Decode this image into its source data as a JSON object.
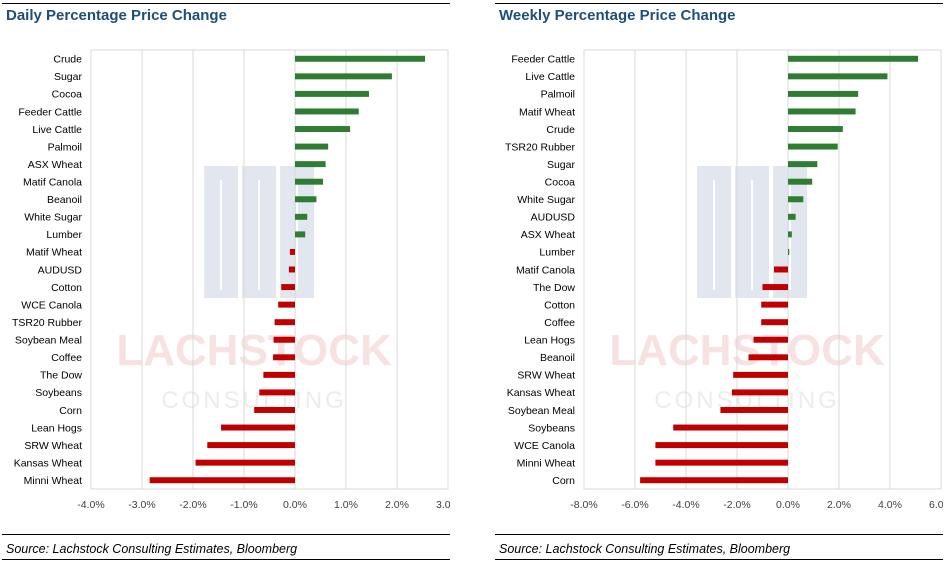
{
  "charts": [
    {
      "title": "Daily Percentage Price Change",
      "source": "Source: Lachstock Consulting Estimates, Bloomberg"
    },
    {
      "title": "Weekly Percentage Price Change",
      "source": "Source: Lachstock Consulting Estimates, Bloomberg"
    }
  ],
  "watermark": {
    "line1": "LACHSTOCK",
    "line2": "CONSULTING"
  },
  "colors": {
    "positive": "#2e7d32",
    "negative": "#c00000",
    "title": "#1f4e79",
    "grid": "#d9d9d9"
  },
  "chart_data": [
    {
      "type": "bar",
      "orientation": "horizontal",
      "title": "Daily Percentage Price Change",
      "categories": [
        "Crude",
        "Sugar",
        "Cocoa",
        "Feeder Cattle",
        "Live Cattle",
        "Palmoil",
        "ASX Wheat",
        "Matif Canola",
        "Beanoil",
        "White Sugar",
        "Lumber",
        "Matif Wheat",
        "AUDUSD",
        "Cotton",
        "WCE Canola",
        "TSR20 Rubber",
        "Soybean Meal",
        "Coffee",
        "The Dow",
        "Soybeans",
        "Corn",
        "Lean Hogs",
        "SRW Wheat",
        "Kansas Wheat",
        "Minni Wheat"
      ],
      "values": [
        2.55,
        1.9,
        1.45,
        1.25,
        1.08,
        0.65,
        0.6,
        0.55,
        0.42,
        0.24,
        0.2,
        -0.1,
        -0.12,
        -0.27,
        -0.33,
        -0.4,
        -0.42,
        -0.43,
        -0.62,
        -0.7,
        -0.8,
        -1.45,
        -1.72,
        -1.95,
        -2.85
      ],
      "xlim": [
        -4,
        3
      ],
      "ticks": [
        "-4.0%",
        "-3.0%",
        "-2.0%",
        "-1.0%",
        "0.0%",
        "1.0%",
        "2.0%",
        "3.0%"
      ],
      "grid": true
    },
    {
      "type": "bar",
      "orientation": "horizontal",
      "title": "Weekly Percentage Price Change",
      "categories": [
        "Feeder Cattle",
        "Live Cattle",
        "Palmoil",
        "Matif Wheat",
        "Crude",
        "TSR20 Rubber",
        "Sugar",
        "Cocoa",
        "White Sugar",
        "AUDUSD",
        "ASX Wheat",
        "Lumber",
        "Matif Canola",
        "The Dow",
        "Cotton",
        "Coffee",
        "Lean Hogs",
        "Beanoil",
        "SRW Wheat",
        "Kansas Wheat",
        "Soybean Meal",
        "Soybeans",
        "WCE Canola",
        "Minni Wheat",
        "Corn"
      ],
      "values": [
        5.1,
        3.9,
        2.75,
        2.65,
        2.15,
        1.95,
        1.15,
        0.95,
        0.6,
        0.3,
        0.15,
        0.05,
        -0.55,
        -1.0,
        -1.05,
        -1.05,
        -1.35,
        -1.55,
        -2.15,
        -2.2,
        -2.65,
        -4.5,
        -5.2,
        -5.2,
        -5.8
      ],
      "xlim": [
        -8,
        6
      ],
      "ticks": [
        "-8.0%",
        "-6.0%",
        "-4.0%",
        "-2.0%",
        "0.0%",
        "2.0%",
        "4.0%",
        "6.0%"
      ],
      "grid": true
    }
  ]
}
